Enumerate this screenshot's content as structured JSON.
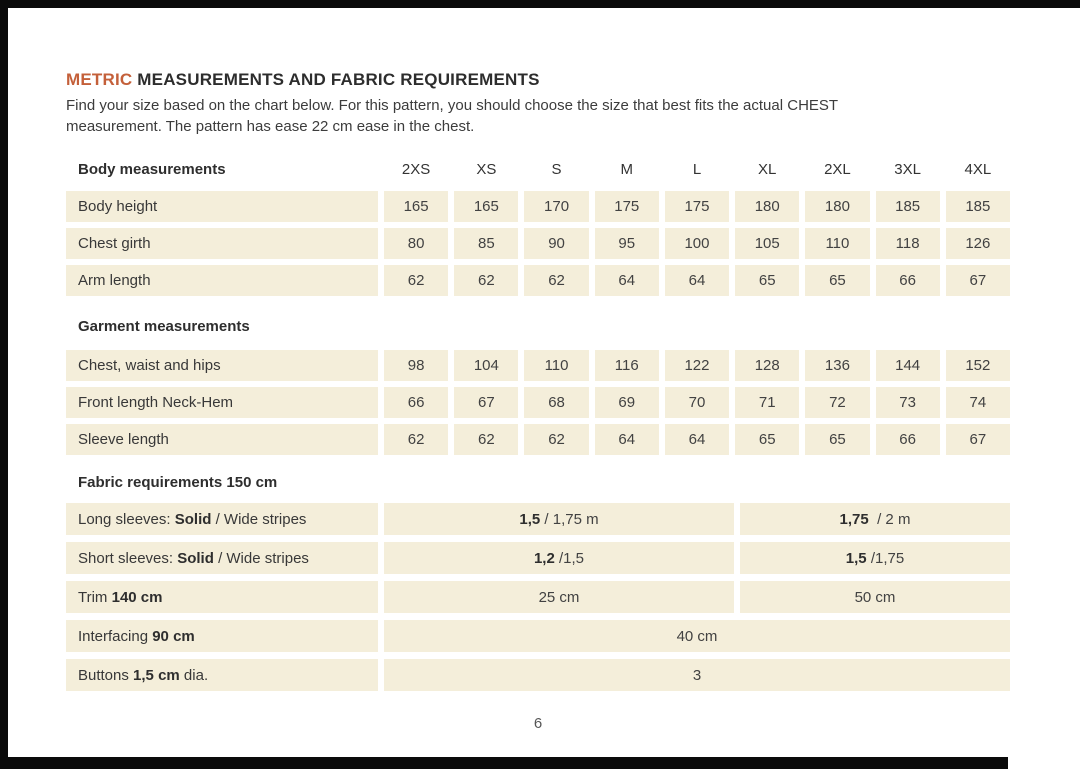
{
  "theme": {
    "accent_color": "#c4603a",
    "cell_bg": "#f4eeda",
    "edge_color": "#0a0a0a"
  },
  "header": {
    "title_accent": "METRIC",
    "title_rest": " MEASUREMENTS AND FABRIC REQUIREMENTS",
    "intro_line1": "Find your size based on the chart below. For this pattern, you should choose the size that best fits the actual CHEST",
    "intro_line2": "measurement. The pattern has ease 22 cm ease in the chest."
  },
  "table": {
    "size_columns": [
      "2XS",
      "XS",
      "S",
      "M",
      "L",
      "XL",
      "2XL",
      "3XL",
      "4XL"
    ],
    "body_measurements": {
      "header": "Body measurements",
      "rows": [
        {
          "label": "Body height",
          "values": [
            "165",
            "165",
            "170",
            "175",
            "175",
            "180",
            "180",
            "185",
            "185"
          ]
        },
        {
          "label": "Chest girth",
          "values": [
            "80",
            "85",
            "90",
            "95",
            "100",
            "105",
            "110",
            "118",
            "126"
          ]
        },
        {
          "label": "Arm length",
          "values": [
            "62",
            "62",
            "62",
            "64",
            "64",
            "65",
            "65",
            "66",
            "67"
          ]
        }
      ]
    },
    "garment_measurements": {
      "header": "Garment measurements",
      "rows": [
        {
          "label": "Chest, waist and hips",
          "values": [
            "98",
            "104",
            "110",
            "116",
            "122",
            "128",
            "136",
            "144",
            "152"
          ]
        },
        {
          "label": "Front length Neck-Hem",
          "values": [
            "66",
            "67",
            "68",
            "69",
            "70",
            "71",
            "72",
            "73",
            "74"
          ]
        },
        {
          "label": "Sleeve length",
          "values": [
            "62",
            "62",
            "62",
            "64",
            "64",
            "65",
            "65",
            "66",
            "67"
          ]
        }
      ]
    },
    "fabric_requirements": {
      "header": "Fabric requirements 150 cm",
      "split_rows": [
        {
          "label_parts": [
            "Long sleeves: ",
            "Solid",
            " / Wide stripes"
          ],
          "col_a_bold": "1,5",
          "col_a_rest": " / 1,75 m",
          "col_b_bold": "1,75",
          "col_b_rest": "  / 2 m"
        },
        {
          "label_parts": [
            "Short sleeves: ",
            "Solid",
            " / Wide stripes"
          ],
          "col_a_bold": "1,2",
          "col_a_rest": " /1,5",
          "col_b_bold": "1,5",
          "col_b_rest": " /1,75"
        }
      ],
      "trim_row": {
        "label_parts": [
          "Trim ",
          "140 cm",
          ""
        ],
        "col_a": "25 cm",
        "col_b": "50 cm"
      },
      "full_rows": [
        {
          "label_parts": [
            "Interfacing ",
            "90 cm",
            ""
          ],
          "value": "40 cm"
        },
        {
          "label_parts": [
            "Buttons ",
            "1,5 cm",
            " dia."
          ],
          "value": "3"
        }
      ]
    }
  },
  "footer": {
    "page_number": "6"
  }
}
